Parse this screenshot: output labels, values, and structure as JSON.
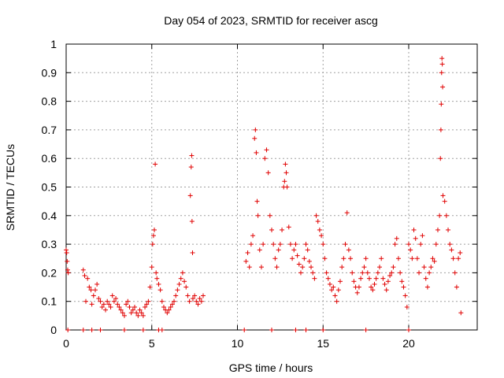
{
  "chart_data": {
    "type": "scatter",
    "title": "Day 054 of 2023, SRMTID for receiver ascg",
    "xlabel": "GPS time / hours",
    "ylabel": "SRMTID / TECUs",
    "xlim": [
      0,
      24
    ],
    "ylim": [
      0,
      1
    ],
    "xticks": [
      0,
      5,
      10,
      15,
      20
    ],
    "xtick_labels": [
      "0",
      "5",
      "10",
      "15",
      "20"
    ],
    "yticks": [
      0,
      0.1,
      0.2,
      0.3,
      0.4,
      0.5,
      0.6,
      0.7,
      0.8,
      0.9,
      1
    ],
    "ytick_labels": [
      "0",
      "0.1",
      "0.2",
      "0.3",
      "0.4",
      "0.5",
      "0.6",
      "0.7",
      "0.8",
      "0.9",
      "1"
    ],
    "grid": true,
    "marker": "plus",
    "color": "#e00000",
    "series": [
      {
        "name": "SRMTID",
        "points": [
          [
            0.0,
            0.28
          ],
          [
            0.03,
            0.27
          ],
          [
            0.06,
            0.24
          ],
          [
            0.09,
            0.21
          ],
          [
            0.12,
            0.2
          ],
          [
            1.0,
            0.21
          ],
          [
            1.08,
            0.19
          ],
          [
            1.15,
            0.1
          ],
          [
            1.25,
            0.18
          ],
          [
            1.35,
            0.15
          ],
          [
            1.45,
            0.14
          ],
          [
            1.5,
            0.09
          ],
          [
            1.6,
            0.12
          ],
          [
            1.7,
            0.14
          ],
          [
            1.8,
            0.16
          ],
          [
            1.9,
            0.11
          ],
          [
            2.0,
            0.1
          ],
          [
            2.1,
            0.08
          ],
          [
            2.2,
            0.09
          ],
          [
            2.3,
            0.07
          ],
          [
            2.4,
            0.1
          ],
          [
            2.5,
            0.09
          ],
          [
            2.6,
            0.08
          ],
          [
            2.7,
            0.12
          ],
          [
            2.8,
            0.1
          ],
          [
            2.9,
            0.11
          ],
          [
            3.0,
            0.09
          ],
          [
            3.1,
            0.08
          ],
          [
            3.2,
            0.07
          ],
          [
            3.3,
            0.06
          ],
          [
            3.4,
            0.05
          ],
          [
            3.5,
            0.09
          ],
          [
            3.6,
            0.1
          ],
          [
            3.7,
            0.08
          ],
          [
            3.8,
            0.06
          ],
          [
            3.9,
            0.07
          ],
          [
            4.0,
            0.08
          ],
          [
            4.1,
            0.06
          ],
          [
            4.2,
            0.05
          ],
          [
            4.3,
            0.07
          ],
          [
            4.4,
            0.06
          ],
          [
            4.5,
            0.05
          ],
          [
            4.6,
            0.08
          ],
          [
            4.7,
            0.09
          ],
          [
            4.8,
            0.1
          ],
          [
            4.9,
            0.15
          ],
          [
            5.0,
            0.22
          ],
          [
            5.05,
            0.3
          ],
          [
            5.1,
            0.33
          ],
          [
            5.15,
            0.35
          ],
          [
            5.2,
            0.58
          ],
          [
            5.25,
            0.2
          ],
          [
            5.3,
            0.18
          ],
          [
            5.4,
            0.16
          ],
          [
            5.5,
            0.14
          ],
          [
            5.6,
            0.1
          ],
          [
            5.7,
            0.08
          ],
          [
            5.8,
            0.07
          ],
          [
            5.9,
            0.06
          ],
          [
            6.0,
            0.07
          ],
          [
            6.1,
            0.08
          ],
          [
            6.2,
            0.09
          ],
          [
            6.3,
            0.1
          ],
          [
            6.4,
            0.12
          ],
          [
            6.5,
            0.14
          ],
          [
            6.6,
            0.16
          ],
          [
            6.7,
            0.18
          ],
          [
            6.8,
            0.2
          ],
          [
            6.9,
            0.17
          ],
          [
            7.0,
            0.15
          ],
          [
            7.1,
            0.12
          ],
          [
            7.2,
            0.1
          ],
          [
            7.25,
            0.47
          ],
          [
            7.3,
            0.57
          ],
          [
            7.33,
            0.61
          ],
          [
            7.35,
            0.38
          ],
          [
            7.38,
            0.27
          ],
          [
            7.4,
            0.11
          ],
          [
            7.5,
            0.12
          ],
          [
            7.6,
            0.1
          ],
          [
            7.7,
            0.09
          ],
          [
            7.8,
            0.11
          ],
          [
            7.9,
            0.1
          ],
          [
            8.0,
            0.12
          ],
          [
            10.5,
            0.24
          ],
          [
            10.6,
            0.27
          ],
          [
            10.7,
            0.22
          ],
          [
            10.8,
            0.3
          ],
          [
            10.9,
            0.33
          ],
          [
            11.0,
            0.67
          ],
          [
            11.05,
            0.7
          ],
          [
            11.1,
            0.62
          ],
          [
            11.15,
            0.45
          ],
          [
            11.2,
            0.4
          ],
          [
            11.3,
            0.28
          ],
          [
            11.4,
            0.22
          ],
          [
            11.5,
            0.3
          ],
          [
            11.6,
            0.6
          ],
          [
            11.7,
            0.63
          ],
          [
            11.8,
            0.55
          ],
          [
            11.9,
            0.4
          ],
          [
            12.0,
            0.35
          ],
          [
            12.1,
            0.3
          ],
          [
            12.2,
            0.25
          ],
          [
            12.3,
            0.22
          ],
          [
            12.4,
            0.28
          ],
          [
            12.5,
            0.3
          ],
          [
            12.6,
            0.35
          ],
          [
            12.7,
            0.5
          ],
          [
            12.75,
            0.52
          ],
          [
            12.8,
            0.58
          ],
          [
            12.85,
            0.55
          ],
          [
            12.9,
            0.5
          ],
          [
            13.0,
            0.36
          ],
          [
            13.1,
            0.3
          ],
          [
            13.2,
            0.25
          ],
          [
            13.3,
            0.28
          ],
          [
            13.4,
            0.3
          ],
          [
            13.5,
            0.26
          ],
          [
            13.6,
            0.23
          ],
          [
            13.7,
            0.2
          ],
          [
            13.8,
            0.22
          ],
          [
            13.9,
            0.25
          ],
          [
            14.0,
            0.3
          ],
          [
            14.1,
            0.28
          ],
          [
            14.2,
            0.24
          ],
          [
            14.3,
            0.22
          ],
          [
            14.4,
            0.2
          ],
          [
            14.5,
            0.18
          ],
          [
            14.6,
            0.4
          ],
          [
            14.7,
            0.38
          ],
          [
            14.8,
            0.35
          ],
          [
            14.9,
            0.33
          ],
          [
            15.0,
            0.3
          ],
          [
            15.1,
            0.25
          ],
          [
            15.2,
            0.2
          ],
          [
            15.3,
            0.18
          ],
          [
            15.4,
            0.16
          ],
          [
            15.5,
            0.14
          ],
          [
            15.6,
            0.15
          ],
          [
            15.7,
            0.12
          ],
          [
            15.8,
            0.1
          ],
          [
            15.9,
            0.14
          ],
          [
            16.0,
            0.17
          ],
          [
            16.1,
            0.22
          ],
          [
            16.2,
            0.25
          ],
          [
            16.3,
            0.3
          ],
          [
            16.4,
            0.41
          ],
          [
            16.5,
            0.28
          ],
          [
            16.6,
            0.25
          ],
          [
            16.7,
            0.2
          ],
          [
            16.8,
            0.17
          ],
          [
            16.9,
            0.15
          ],
          [
            17.0,
            0.13
          ],
          [
            17.1,
            0.15
          ],
          [
            17.2,
            0.18
          ],
          [
            17.3,
            0.2
          ],
          [
            17.4,
            0.22
          ],
          [
            17.5,
            0.25
          ],
          [
            17.6,
            0.2
          ],
          [
            17.7,
            0.18
          ],
          [
            17.8,
            0.15
          ],
          [
            17.9,
            0.14
          ],
          [
            18.0,
            0.16
          ],
          [
            18.1,
            0.18
          ],
          [
            18.2,
            0.2
          ],
          [
            18.3,
            0.22
          ],
          [
            18.4,
            0.25
          ],
          [
            18.5,
            0.18
          ],
          [
            18.6,
            0.16
          ],
          [
            18.7,
            0.14
          ],
          [
            18.8,
            0.17
          ],
          [
            18.9,
            0.19
          ],
          [
            19.0,
            0.2
          ],
          [
            19.1,
            0.22
          ],
          [
            19.2,
            0.3
          ],
          [
            19.3,
            0.32
          ],
          [
            19.4,
            0.25
          ],
          [
            19.5,
            0.2
          ],
          [
            19.6,
            0.17
          ],
          [
            19.7,
            0.15
          ],
          [
            19.8,
            0.12
          ],
          [
            19.9,
            0.08
          ],
          [
            20.0,
            0.3
          ],
          [
            20.1,
            0.28
          ],
          [
            20.2,
            0.25
          ],
          [
            20.3,
            0.35
          ],
          [
            20.4,
            0.32
          ],
          [
            20.5,
            0.25
          ],
          [
            20.6,
            0.2
          ],
          [
            20.7,
            0.3
          ],
          [
            20.8,
            0.33
          ],
          [
            20.9,
            0.22
          ],
          [
            21.0,
            0.18
          ],
          [
            21.1,
            0.15
          ],
          [
            21.2,
            0.2
          ],
          [
            21.3,
            0.22
          ],
          [
            21.4,
            0.25
          ],
          [
            21.5,
            0.24
          ],
          [
            21.6,
            0.3
          ],
          [
            21.7,
            0.35
          ],
          [
            21.8,
            0.4
          ],
          [
            21.85,
            0.6
          ],
          [
            21.88,
            0.7
          ],
          [
            21.9,
            0.79
          ],
          [
            21.92,
            0.9
          ],
          [
            21.94,
            0.95
          ],
          [
            21.96,
            0.93
          ],
          [
            21.98,
            0.85
          ],
          [
            22.0,
            0.47
          ],
          [
            22.1,
            0.45
          ],
          [
            22.2,
            0.4
          ],
          [
            22.3,
            0.35
          ],
          [
            22.4,
            0.3
          ],
          [
            22.5,
            0.28
          ],
          [
            22.6,
            0.25
          ],
          [
            22.7,
            0.2
          ],
          [
            22.8,
            0.15
          ],
          [
            22.9,
            0.25
          ],
          [
            23.0,
            0.27
          ],
          [
            23.05,
            0.06
          ]
        ]
      }
    ],
    "zero_points_x": [
      0.1,
      1.0,
      1.5,
      2.0,
      3.4,
      4.5,
      5.4,
      5.6,
      10.4,
      12.0,
      13.4,
      14.0,
      15.0,
      17.5,
      20.0
    ]
  }
}
